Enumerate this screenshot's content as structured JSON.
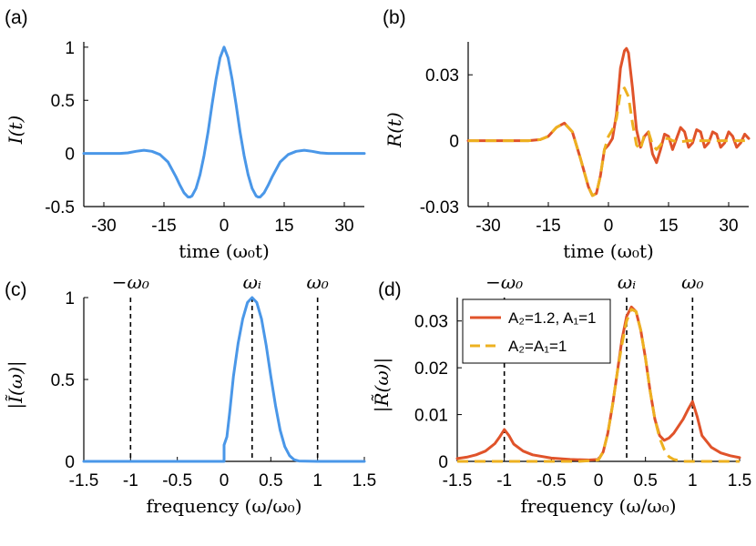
{
  "colors": {
    "blue": "#4a97e8",
    "red": "#e0532a",
    "yellow": "#edb120",
    "black": "#000000"
  },
  "chart_data": [
    {
      "id": "a",
      "panel_label": "(a)",
      "type": "line",
      "xlabel": "time (ω₀t)",
      "ylabel": "I(t)",
      "xlim": [
        -35,
        35
      ],
      "ylim": [
        -0.5,
        1.05
      ],
      "xticks": [
        -30,
        -15,
        0,
        15,
        30
      ],
      "xtick_labels": [
        "-30",
        "-15",
        "0",
        "15",
        "30"
      ],
      "yticks": [
        -0.5,
        0,
        0.5,
        1
      ],
      "ytick_labels": [
        "-0.5",
        "0",
        "0.5",
        "1"
      ],
      "series": [
        {
          "name": "I(t)",
          "color": "#4a97e8",
          "dashed": false,
          "x": [
            -35,
            -30,
            -26,
            -24,
            -22,
            -20,
            -18,
            -16,
            -14,
            -12,
            -11,
            -10,
            -9,
            -8.5,
            -8,
            -7,
            -6,
            -5,
            -4,
            -3,
            -2,
            -1,
            0,
            1,
            2,
            3,
            4,
            5,
            6,
            7,
            8,
            8.5,
            9,
            10,
            11,
            12,
            14,
            16,
            18,
            20,
            22,
            24,
            26,
            30,
            35
          ],
          "y": [
            0,
            0,
            0,
            0.005,
            0.02,
            0.03,
            0.02,
            -0.01,
            -0.08,
            -0.22,
            -0.3,
            -0.37,
            -0.41,
            -0.41,
            -0.4,
            -0.33,
            -0.2,
            -0.02,
            0.2,
            0.46,
            0.7,
            0.9,
            1,
            0.9,
            0.7,
            0.46,
            0.2,
            -0.02,
            -0.2,
            -0.33,
            -0.4,
            -0.41,
            -0.41,
            -0.37,
            -0.3,
            -0.22,
            -0.08,
            -0.01,
            0.02,
            0.03,
            0.02,
            0.005,
            0,
            0,
            0
          ]
        }
      ]
    },
    {
      "id": "b",
      "panel_label": "(b)",
      "type": "line",
      "xlabel": "time (ω₀t)",
      "ylabel": "R(t)",
      "xlim": [
        -35,
        35
      ],
      "ylim": [
        -0.03,
        0.045
      ],
      "xticks": [
        -30,
        -15,
        0,
        15,
        30
      ],
      "xtick_labels": [
        "-30",
        "-15",
        "0",
        "15",
        "30"
      ],
      "yticks": [
        -0.03,
        0,
        0.03
      ],
      "ytick_labels": [
        "-0.03",
        "0",
        "0.03"
      ],
      "series": [
        {
          "name": "A2=1.2, A1=1",
          "color": "#e0532a",
          "dashed": false,
          "x": [
            -35,
            -25,
            -20,
            -17,
            -15,
            -13,
            -11,
            -9,
            -7,
            -5,
            -4,
            -3,
            -2,
            -1,
            0,
            1,
            2,
            3,
            4,
            4.5,
            5,
            6,
            7,
            8,
            9,
            10,
            11,
            12,
            13,
            14,
            15,
            16,
            17,
            18,
            19,
            20,
            21,
            22,
            23,
            24,
            25,
            26,
            27,
            28,
            29,
            30,
            31,
            32,
            33,
            34,
            35
          ],
          "y": [
            0,
            0,
            0,
            0.0005,
            0.002,
            0.006,
            0.008,
            0.004,
            -0.008,
            -0.021,
            -0.025,
            -0.024,
            -0.016,
            -0.004,
            -0.002,
            0.001,
            0.012,
            0.033,
            0.041,
            0.042,
            0.04,
            0.024,
            0.005,
            -0.003,
            0.002,
            0.004,
            -0.006,
            -0.01,
            -0.004,
            0.003,
            0.002,
            -0.004,
            0.001,
            0.006,
            0.004,
            -0.003,
            -0.001,
            0.005,
            0.004,
            -0.003,
            -0.001,
            0.004,
            0.003,
            -0.003,
            -0.001,
            0.004,
            0.002,
            -0.003,
            -0.001,
            0.003,
            0.001
          ]
        },
        {
          "name": "A2=A1=1",
          "color": "#edb120",
          "dashed": true,
          "x": [
            -35,
            -25,
            -20,
            -17,
            -15,
            -13,
            -11,
            -9,
            -7,
            -5,
            -4,
            -3,
            -2,
            -1,
            0,
            1,
            2,
            3,
            4,
            5,
            6,
            7,
            8,
            9,
            10,
            11,
            12,
            13,
            14,
            15,
            16,
            18,
            20,
            22,
            25,
            30,
            35
          ],
          "y": [
            0,
            0,
            0,
            0.0005,
            0.002,
            0.006,
            0.008,
            0.004,
            -0.008,
            -0.021,
            -0.025,
            -0.024,
            -0.016,
            -0.004,
            0.002,
            0.005,
            0.01,
            0.022,
            0.024,
            0.02,
            0.008,
            -0.002,
            -0.004,
            0.003,
            0.004,
            -0.002,
            -0.004,
            -0.002,
            0.001,
            0.001,
            0,
            -0.0005,
            0,
            0,
            0,
            0,
            0
          ]
        }
      ]
    },
    {
      "id": "c",
      "panel_label": "(c)",
      "type": "line",
      "xlabel": "frequency (ω/ω₀)",
      "ylabel": "|Ĩ(ω)|",
      "xlim": [
        -1.5,
        1.5
      ],
      "ylim": [
        0,
        1
      ],
      "xticks": [
        -1.5,
        -1,
        -0.5,
        0,
        0.5,
        1,
        1.5
      ],
      "xtick_labels": [
        "-1.5",
        "-1",
        "-0.5",
        "0",
        "0.5",
        "1",
        "1.5"
      ],
      "yticks": [
        0,
        0.5,
        1
      ],
      "ytick_labels": [
        "0",
        "0.5",
        "1"
      ],
      "vlines": [
        {
          "x": -1,
          "label": "−ω₀"
        },
        {
          "x": 0.3,
          "label": "ωᵢ"
        },
        {
          "x": 1,
          "label": "ω₀"
        }
      ],
      "series": [
        {
          "name": "|Ĩ(ω)|",
          "color": "#4a97e8",
          "dashed": false,
          "x": [
            -1.5,
            -1,
            -0.5,
            0,
            0,
            0.03,
            0.06,
            0.1,
            0.15,
            0.2,
            0.25,
            0.3,
            0.35,
            0.4,
            0.45,
            0.5,
            0.55,
            0.6,
            0.65,
            0.7,
            0.75,
            0.8,
            1,
            1.5
          ],
          "y": [
            0,
            0,
            0,
            0,
            0.1,
            0.15,
            0.3,
            0.52,
            0.72,
            0.87,
            0.97,
            1,
            0.97,
            0.87,
            0.71,
            0.52,
            0.34,
            0.19,
            0.09,
            0.035,
            0.01,
            0.002,
            0,
            0
          ]
        }
      ]
    },
    {
      "id": "d",
      "panel_label": "(d)",
      "type": "line",
      "xlabel": "frequency (ω/ω₀)",
      "ylabel": "|R̃(ω)|",
      "xlim": [
        -1.5,
        1.5
      ],
      "ylim": [
        0,
        0.035
      ],
      "xticks": [
        -1.5,
        -1,
        -0.5,
        0,
        0.5,
        1,
        1.5
      ],
      "xtick_labels": [
        "-1.5",
        "-1",
        "-0.5",
        "0",
        "0.5",
        "1",
        "1.5"
      ],
      "yticks": [
        0,
        0.01,
        0.02,
        0.03
      ],
      "ytick_labels": [
        "0",
        "0.01",
        "0.02",
        "0.03"
      ],
      "vlines": [
        {
          "x": -1,
          "label": "−ω₀"
        },
        {
          "x": 0.3,
          "label": "ωᵢ"
        },
        {
          "x": 1,
          "label": "ω₀"
        }
      ],
      "legend": {
        "position": "top-left",
        "entries": [
          {
            "label": "A₂=1.2, A₁=1",
            "color": "#e0532a",
            "dashed": false
          },
          {
            "label": "A₂=A₁=1",
            "color": "#edb120",
            "dashed": true
          }
        ]
      },
      "series": [
        {
          "name": "A2=1.2, A1=1",
          "color": "#e0532a",
          "dashed": false,
          "x": [
            -1.5,
            -1.4,
            -1.3,
            -1.2,
            -1.1,
            -1.05,
            -1,
            -0.95,
            -0.9,
            -0.8,
            -0.7,
            -0.5,
            -0.3,
            -0.1,
            0,
            0.05,
            0.1,
            0.15,
            0.2,
            0.25,
            0.3,
            0.35,
            0.4,
            0.45,
            0.5,
            0.55,
            0.6,
            0.65,
            0.7,
            0.75,
            0.8,
            0.85,
            0.9,
            0.95,
            1,
            1.05,
            1.1,
            1.2,
            1.3,
            1.4,
            1.5
          ],
          "y": [
            0.0006,
            0.0009,
            0.0014,
            0.0022,
            0.0038,
            0.0052,
            0.0068,
            0.0055,
            0.0037,
            0.0022,
            0.0014,
            0.0007,
            0.0004,
            0.0003,
            0.0004,
            0.002,
            0.006,
            0.012,
            0.019,
            0.026,
            0.031,
            0.033,
            0.032,
            0.028,
            0.022,
            0.015,
            0.009,
            0.0055,
            0.0045,
            0.005,
            0.006,
            0.0075,
            0.009,
            0.011,
            0.0128,
            0.0095,
            0.0055,
            0.003,
            0.0018,
            0.0012,
            0.0008
          ]
        },
        {
          "name": "A2=A1=1",
          "color": "#edb120",
          "dashed": true,
          "x": [
            -1.5,
            -1,
            -0.5,
            -0.2,
            0,
            0.05,
            0.1,
            0.15,
            0.2,
            0.25,
            0.3,
            0.35,
            0.4,
            0.45,
            0.5,
            0.55,
            0.6,
            0.65,
            0.7,
            0.75,
            0.8,
            0.9,
            1,
            1.5
          ],
          "y": [
            0,
            0,
            0,
            0,
            0.0003,
            0.002,
            0.006,
            0.012,
            0.019,
            0.025,
            0.03,
            0.0325,
            0.032,
            0.028,
            0.022,
            0.015,
            0.009,
            0.005,
            0.0025,
            0.001,
            0.0004,
            0,
            0,
            0
          ]
        }
      ]
    }
  ]
}
